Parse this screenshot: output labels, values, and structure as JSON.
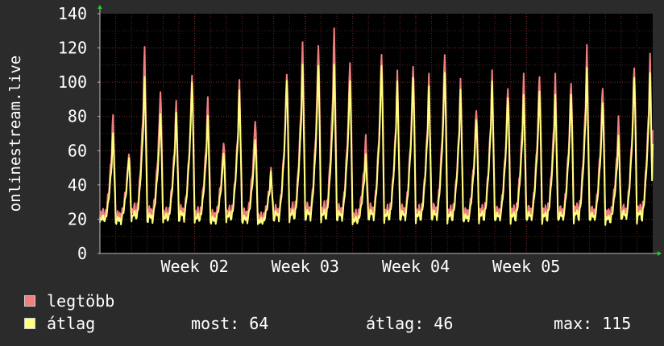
{
  "chart_data": {
    "type": "line",
    "ylabel": "onlinestream.live",
    "ylim": [
      0,
      140
    ],
    "yticks": [
      0,
      20,
      40,
      60,
      80,
      100,
      120,
      140
    ],
    "xticks": [
      "Week 02",
      "Week 03",
      "Week 04",
      "Week 05"
    ],
    "grid": true,
    "x_days": 35,
    "series": [
      {
        "name": "legtöbb",
        "color": "#f08080",
        "daily_peaks": [
          80,
          60,
          120,
          97,
          88,
          107,
          90,
          67,
          100,
          80,
          48,
          108,
          122,
          125,
          130,
          115,
          67,
          120,
          105,
          113,
          103,
          120,
          100,
          87,
          105,
          100,
          103,
          107,
          103,
          103,
          120,
          100,
          78,
          112,
          115
        ]
      },
      {
        "name": "átlag",
        "color": "#ffff80",
        "daily_peaks": [
          70,
          57,
          103,
          83,
          82,
          102,
          80,
          60,
          95,
          68,
          47,
          103,
          110,
          112,
          110,
          103,
          57,
          112,
          100,
          105,
          97,
          108,
          95,
          80,
          100,
          93,
          92,
          97,
          92,
          95,
          108,
          90,
          68,
          105,
          105
        ]
      }
    ]
  },
  "legend": {
    "items": [
      {
        "label": "legtöbb",
        "color": "#f08080"
      },
      {
        "label": "átlag",
        "color": "#ffff80"
      }
    ],
    "stats": {
      "most": "most: 64",
      "atlag": "átlag: 46",
      "max": "max: 115"
    }
  }
}
